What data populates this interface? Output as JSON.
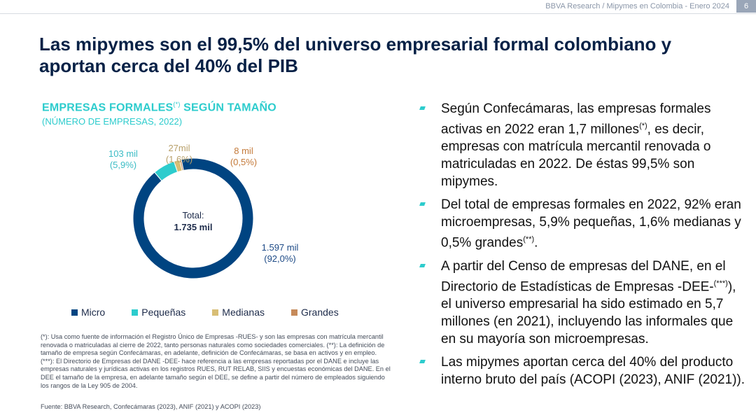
{
  "header": {
    "note": "BBVA Research / Mipymes en Colombia - Enero 2024",
    "page_number": "6"
  },
  "title": "Las mipymes son el 99,5% del universo empresarial formal colombiano y aportan cerca del 40% del PIB",
  "chart_data": {
    "type": "pie",
    "title": "EMPRESAS FORMALES",
    "title_sup": "(*)",
    "title_suffix": " SEGÚN TAMAÑO",
    "subtitle": "(NÚMERO DE EMPRESAS, 2022)",
    "center_label": "Total:",
    "center_value": "1.735 mil",
    "legend_position": "bottom",
    "slices": [
      {
        "name": "Micro",
        "value": 1597,
        "value_label": "1.597 mil",
        "pct_label": "(92,0%)",
        "color": "#004481"
      },
      {
        "name": "Pequeñas",
        "value": 103,
        "value_label": "103 mil",
        "pct_label": "(5,9%)",
        "color": "#2dcccd"
      },
      {
        "name": "Medianas",
        "value": 27,
        "value_label": "27mil",
        "pct_label": "(1,6%)",
        "color": "#d8be75"
      },
      {
        "name": "Grandes",
        "value": 8,
        "value_label": "8 mil",
        "pct_label": "(0,5%)",
        "color": "#c68a5a"
      }
    ],
    "label_colors": [
      "#1d4a86",
      "#3bbcc5",
      "#b8a06a",
      "#c47a3a"
    ]
  },
  "footnote": "(*): Usa como fuente de información el Registro Único de Empresas -RUES- y son las empresas con matrícula mercantil renovada o matriculadas al cierre de 2022, tanto personas naturales como sociedades comerciales. (**): La definición de tamaño de empresa según Confecámaras, en adelante, definición de Confecámaras, se basa en activos y en empleo. (***): El Directorio de Empresas del DANE -DEE- hace referencia a las empresas reportadas por el DANE e incluye las empresas naturales y jurídicas activas en los registros RUES, RUT RELAB, SIIS y encuestas económicas del DANE. En el DEE el tamaño de la empresa, en adelante tamaño según el DEE, se define a partir del número de empleados siguiendo los rangos de la Ley 905 de 2004.",
  "source": "Fuente: BBVA Research, Confecámaras (2023), ANIF (2021) y ACOPI (2023)",
  "bullets": [
    {
      "pre": "Según Confecámaras, las empresas formales activas en 2022 eran 1,7 millones",
      "sup": "(*)",
      "post": ", es decir, empresas con matrícula mercantil renovada o matriculadas en 2022. De éstas 99,5% son mipymes."
    },
    {
      "pre": "Del total de empresas formales en 2022,  92% eran microempresas, 5,9% pequeñas, 1,6% medianas y 0,5% grandes",
      "sup": "(**)",
      "post": "."
    },
    {
      "pre": "A partir del Censo de empresas del DANE, en el Directorio de Estadísticas de Empresas -DEE-",
      "sup": "(***)",
      "post": "), el universo empresarial ha sido estimado en 5,7 millones (en 2021), incluyendo las informales que en su mayoría son microempresas."
    },
    {
      "pre": "Las mipymes aportan cerca del 40% del producto interno bruto del país (ACOPI (2023), ANIF (2021)).",
      "sup": "",
      "post": ""
    }
  ]
}
